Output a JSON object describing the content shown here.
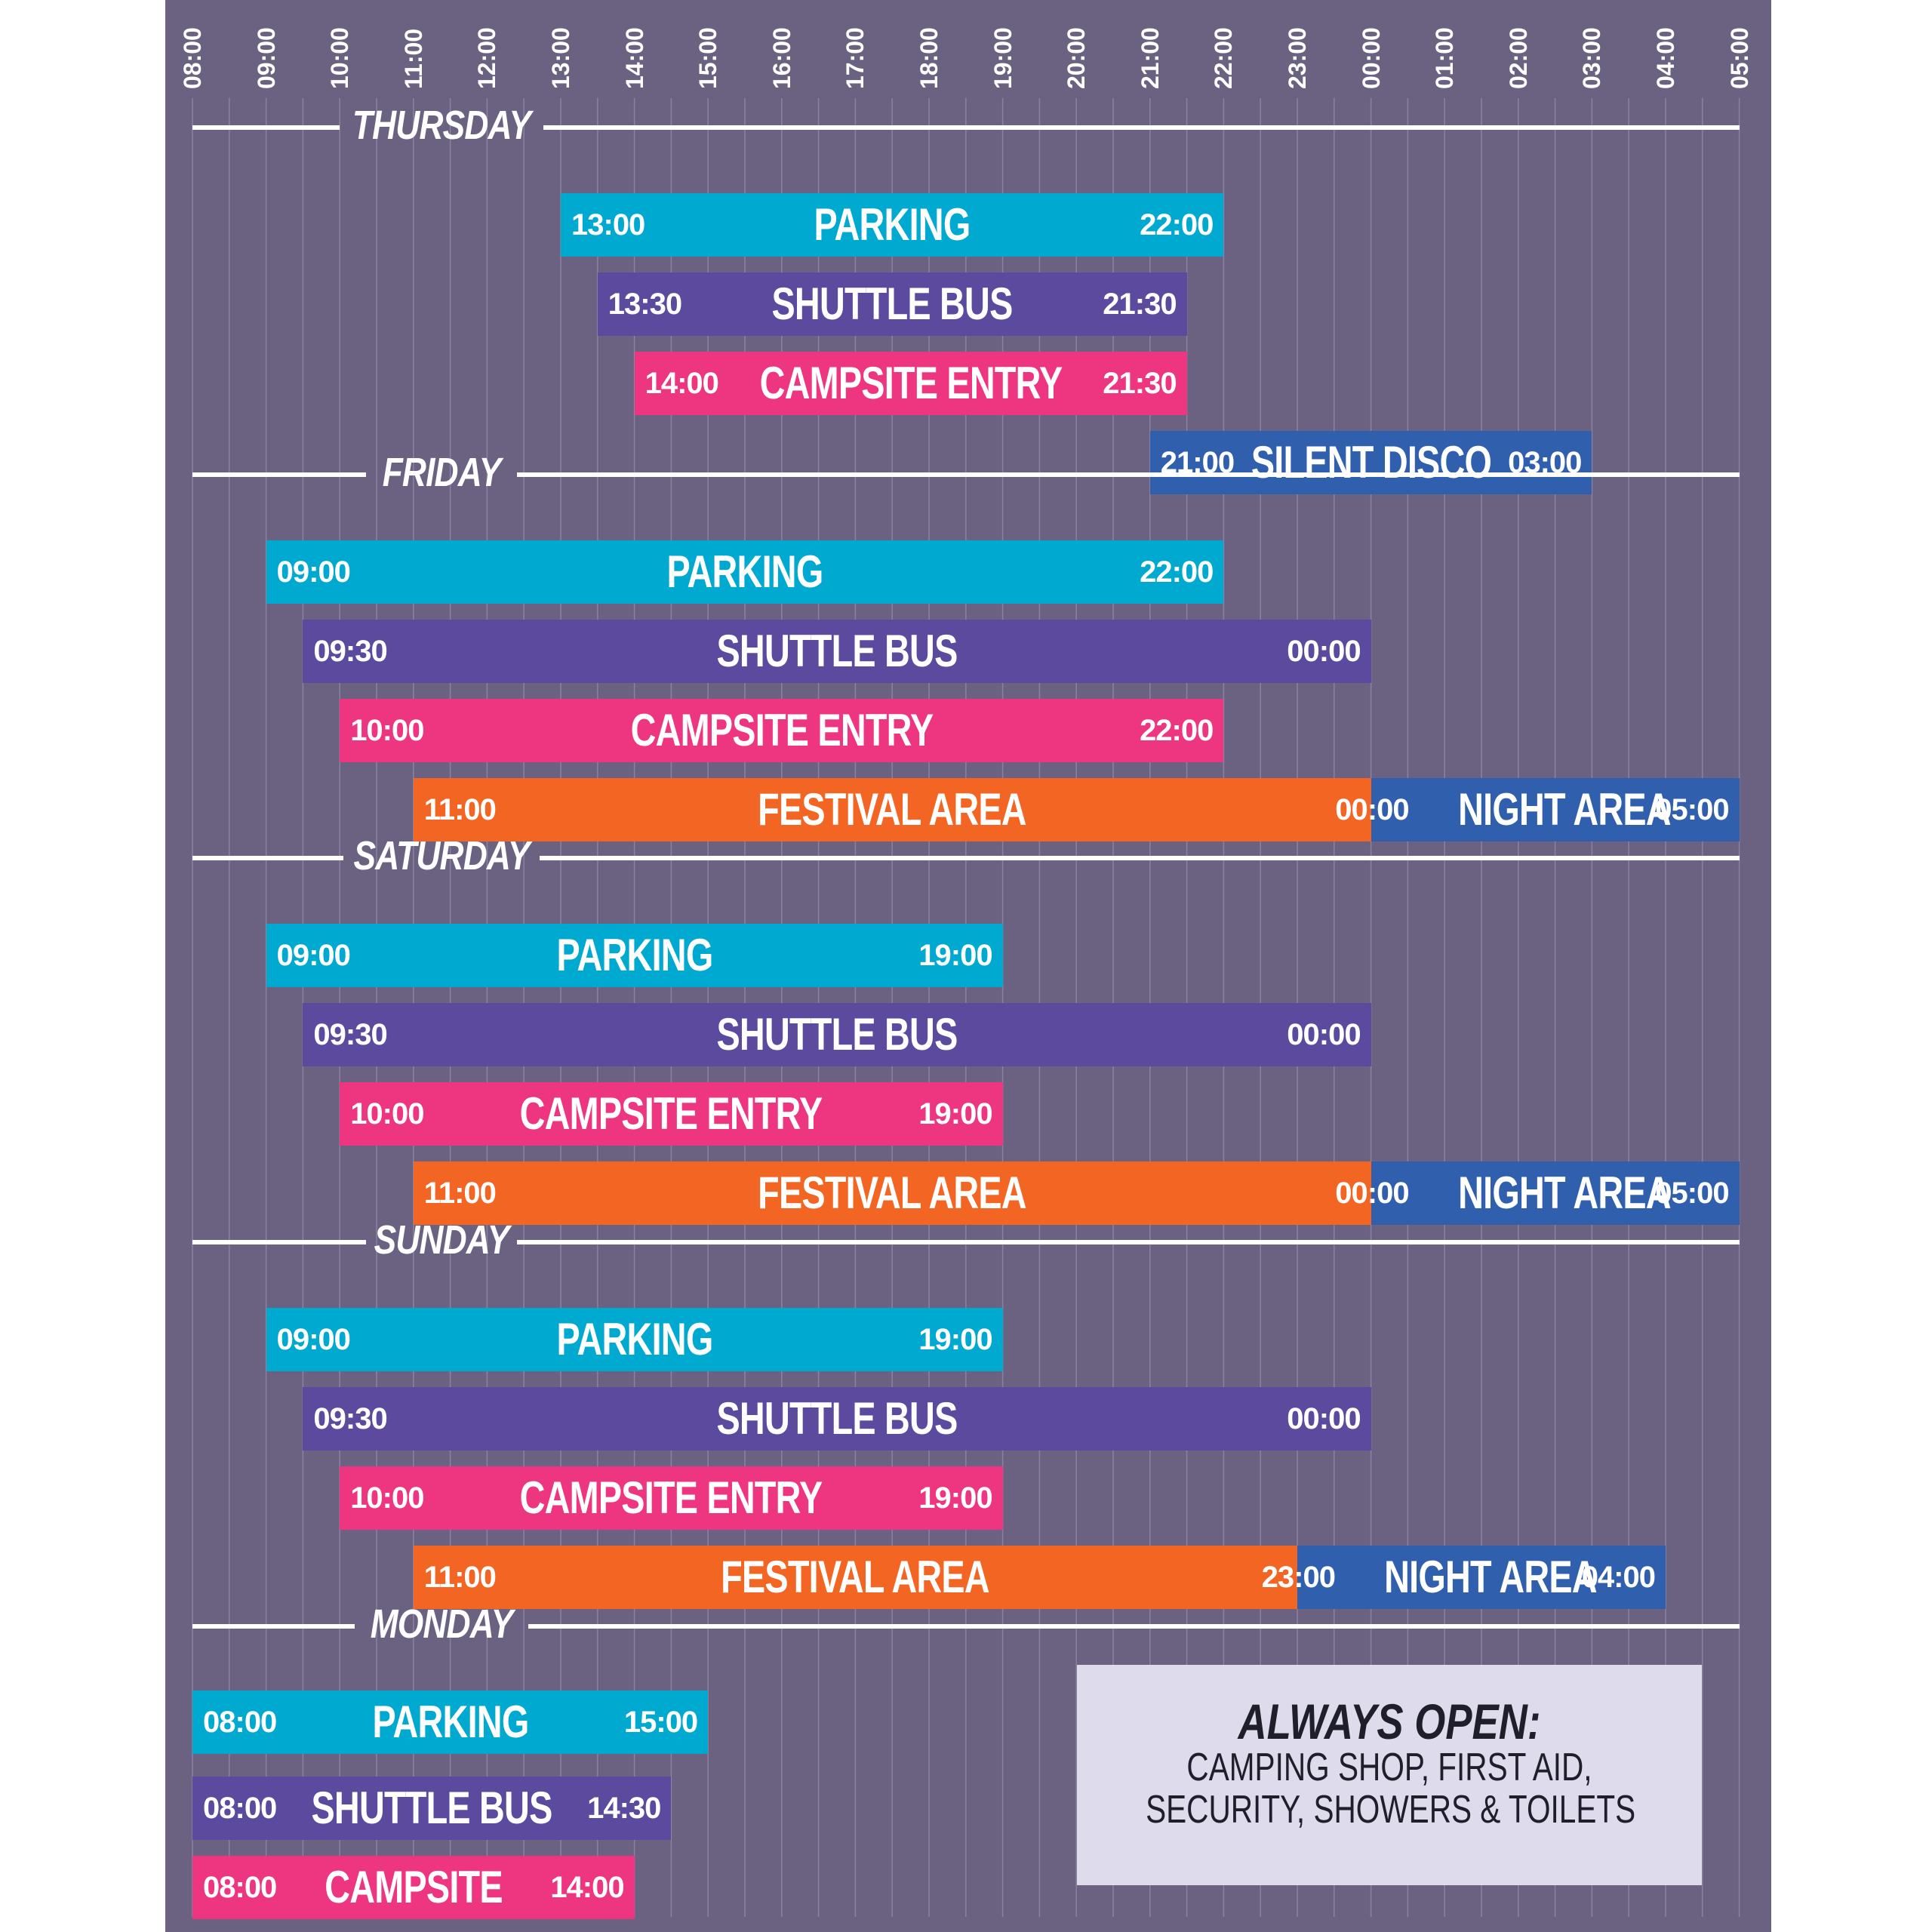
{
  "hours": [
    "08:00",
    "09:00",
    "10:00",
    "11:00",
    "12:00",
    "13:00",
    "14:00",
    "15:00",
    "16:00",
    "17:00",
    "18:00",
    "19:00",
    "20:00",
    "21:00",
    "22:00",
    "23:00",
    "00:00",
    "01:00",
    "02:00",
    "03:00",
    "04:00",
    "05:00"
  ],
  "days": [
    {
      "name": "THURSDAY",
      "rows": [
        {
          "segments": [
            {
              "kind": "parking",
              "label": "PARKING",
              "start": "13:00",
              "end": "22:00",
              "from": 5,
              "to": 14
            }
          ]
        },
        {
          "segments": [
            {
              "kind": "shuttle",
              "label": "SHUTTLE BUS",
              "start": "13:30",
              "end": "21:30",
              "from": 5.5,
              "to": 13.5
            }
          ]
        },
        {
          "segments": [
            {
              "kind": "campsite",
              "label": "CAMPSITE ENTRY",
              "start": "14:00",
              "end": "21:30",
              "from": 6,
              "to": 13.5
            }
          ]
        },
        {
          "segments": [
            {
              "kind": "night",
              "label": "SILENT DISCO",
              "start": "21:00",
              "end": "03:00",
              "from": 13,
              "to": 19
            }
          ]
        }
      ]
    },
    {
      "name": "FRIDAY",
      "rows": [
        {
          "segments": [
            {
              "kind": "parking",
              "label": "PARKING",
              "start": "09:00",
              "end": "22:00",
              "from": 1,
              "to": 14
            }
          ]
        },
        {
          "segments": [
            {
              "kind": "shuttle",
              "label": "SHUTTLE BUS",
              "start": "09:30",
              "end": "00:00",
              "from": 1.5,
              "to": 16
            }
          ]
        },
        {
          "segments": [
            {
              "kind": "campsite",
              "label": "CAMPSITE ENTRY",
              "start": "10:00",
              "end": "22:00",
              "from": 2,
              "to": 14
            }
          ]
        },
        {
          "segments": [
            {
              "kind": "festival",
              "label": "FESTIVAL AREA",
              "start": "11:00",
              "end": "00:00",
              "from": 3,
              "to": 16
            },
            {
              "kind": "night",
              "label": "NIGHT AREA",
              "start": "",
              "end": "05:00",
              "from": 16,
              "to": 21
            }
          ]
        }
      ]
    },
    {
      "name": "SATURDAY",
      "rows": [
        {
          "segments": [
            {
              "kind": "parking",
              "label": "PARKING",
              "start": "09:00",
              "end": "19:00",
              "from": 1,
              "to": 11
            }
          ]
        },
        {
          "segments": [
            {
              "kind": "shuttle",
              "label": "SHUTTLE BUS",
              "start": "09:30",
              "end": "00:00",
              "from": 1.5,
              "to": 16
            }
          ]
        },
        {
          "segments": [
            {
              "kind": "campsite",
              "label": "CAMPSITE ENTRY",
              "start": "10:00",
              "end": "19:00",
              "from": 2,
              "to": 11
            }
          ]
        },
        {
          "segments": [
            {
              "kind": "festival",
              "label": "FESTIVAL AREA",
              "start": "11:00",
              "end": "00:00",
              "from": 3,
              "to": 16
            },
            {
              "kind": "night",
              "label": "NIGHT AREA",
              "start": "",
              "end": "05:00",
              "from": 16,
              "to": 21
            }
          ]
        }
      ]
    },
    {
      "name": "SUNDAY",
      "rows": [
        {
          "segments": [
            {
              "kind": "parking",
              "label": "PARKING",
              "start": "09:00",
              "end": "19:00",
              "from": 1,
              "to": 11
            }
          ]
        },
        {
          "segments": [
            {
              "kind": "shuttle",
              "label": "SHUTTLE BUS",
              "start": "09:30",
              "end": "00:00",
              "from": 1.5,
              "to": 16
            }
          ]
        },
        {
          "segments": [
            {
              "kind": "campsite",
              "label": "CAMPSITE ENTRY",
              "start": "10:00",
              "end": "19:00",
              "from": 2,
              "to": 11
            }
          ]
        },
        {
          "segments": [
            {
              "kind": "festival",
              "label": "FESTIVAL AREA",
              "start": "11:00",
              "end": "23:00",
              "from": 3,
              "to": 15
            },
            {
              "kind": "night",
              "label": "NIGHT AREA",
              "start": "",
              "end": "04:00",
              "from": 15,
              "to": 20
            }
          ]
        }
      ]
    },
    {
      "name": "MONDAY",
      "rows": [
        {
          "segments": [
            {
              "kind": "parking",
              "label": "PARKING",
              "start": "08:00",
              "end": "15:00",
              "from": 0,
              "to": 7
            }
          ]
        },
        {
          "segments": [
            {
              "kind": "shuttle",
              "label": "SHUTTLE BUS",
              "start": "08:00",
              "end": "14:30",
              "from": 0,
              "to": 6.5
            }
          ]
        },
        {
          "segments": [
            {
              "kind": "campsite",
              "label": "CAMPSITE",
              "start": "08:00",
              "end": "14:00",
              "from": 0,
              "to": 6
            }
          ]
        }
      ]
    }
  ],
  "always_open": {
    "title": "ALWAYS OPEN:",
    "line1": "CAMPING SHOP, FIRST AID,",
    "line2": "SECURITY, SHOWERS & TOILETS"
  },
  "colors": {
    "background": "#6b6282",
    "parking": "#00a9cf",
    "shuttle": "#5b4a9d",
    "campsite": "#ee3580",
    "festival": "#f26522",
    "night": "#2f5fad"
  }
}
